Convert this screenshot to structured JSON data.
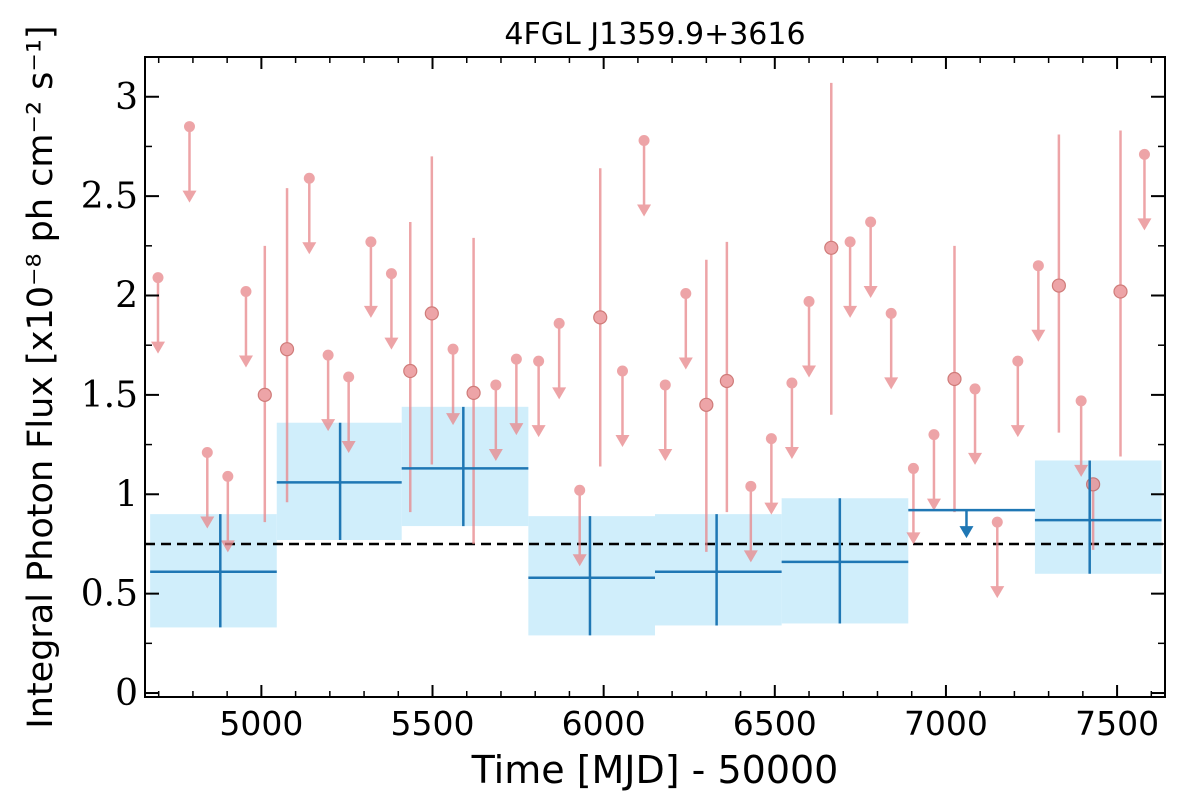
{
  "chart_data": {
    "type": "scatter",
    "title": "4FGL J1359.9+3616",
    "xlabel": "Time [MJD] - 50000",
    "ylabel": "Integral Photon Flux [x10⁻⁸ ph cm⁻² s⁻¹]",
    "xlim": [
      4660,
      7640
    ],
    "ylim": [
      -0.02,
      3.2
    ],
    "xticks": [
      5000,
      5500,
      6000,
      6500,
      7000,
      7500
    ],
    "xtick_labels": [
      "5000",
      "5500",
      "6000",
      "6500",
      "7000",
      "7500"
    ],
    "yticks": [
      0,
      0.5,
      1,
      1.5,
      2,
      2.5,
      3
    ],
    "ytick_labels": [
      "0",
      "0.5",
      "1",
      "1.5",
      "2",
      "2.5",
      "3"
    ],
    "reference_line": {
      "y": 0.75,
      "style": "dashed",
      "color": "#000000"
    },
    "colors": {
      "short_bins": "#e8868a",
      "long_bins": "#1f77b4",
      "band_fill": "#d0eefb"
    },
    "series": [
      {
        "marker": "circle",
        "color": "#e8868a",
        "upper_limits": [
          {
            "x": 4698,
            "y": 2.09
          },
          {
            "x": 4790,
            "y": 2.85
          },
          {
            "x": 4842,
            "y": 1.21
          },
          {
            "x": 4902,
            "y": 1.09
          },
          {
            "x": 4955,
            "y": 2.02
          },
          {
            "x": 5140,
            "y": 2.59
          },
          {
            "x": 5195,
            "y": 1.7
          },
          {
            "x": 5255,
            "y": 1.59
          },
          {
            "x": 5320,
            "y": 2.27
          },
          {
            "x": 5380,
            "y": 2.11
          },
          {
            "x": 5560,
            "y": 1.73
          },
          {
            "x": 5685,
            "y": 1.55
          },
          {
            "x": 5745,
            "y": 1.68
          },
          {
            "x": 5810,
            "y": 1.67
          },
          {
            "x": 5870,
            "y": 1.86
          },
          {
            "x": 5930,
            "y": 1.02
          },
          {
            "x": 6055,
            "y": 1.62
          },
          {
            "x": 6118,
            "y": 2.78
          },
          {
            "x": 6180,
            "y": 1.55
          },
          {
            "x": 6240,
            "y": 2.01
          },
          {
            "x": 6430,
            "y": 1.04
          },
          {
            "x": 6490,
            "y": 1.28
          },
          {
            "x": 6550,
            "y": 1.56
          },
          {
            "x": 6600,
            "y": 1.97
          },
          {
            "x": 6720,
            "y": 2.27
          },
          {
            "x": 6780,
            "y": 2.37
          },
          {
            "x": 6840,
            "y": 1.91
          },
          {
            "x": 6905,
            "y": 1.13
          },
          {
            "x": 6965,
            "y": 1.3
          },
          {
            "x": 7085,
            "y": 1.53
          },
          {
            "x": 7150,
            "y": 0.86
          },
          {
            "x": 7210,
            "y": 1.67
          },
          {
            "x": 7270,
            "y": 2.15
          },
          {
            "x": 7395,
            "y": 1.47
          },
          {
            "x": 7580,
            "y": 2.71
          }
        ],
        "points": [
          {
            "x": 5010,
            "y": 1.5,
            "ylo": 0.86,
            "yhi": 2.25
          },
          {
            "x": 5075,
            "y": 1.73,
            "ylo": 0.96,
            "yhi": 2.54
          },
          {
            "x": 5435,
            "y": 1.62,
            "ylo": 0.91,
            "yhi": 2.37
          },
          {
            "x": 5498,
            "y": 1.91,
            "ylo": 1.15,
            "yhi": 2.7
          },
          {
            "x": 5620,
            "y": 1.51,
            "ylo": 0.75,
            "yhi": 2.29
          },
          {
            "x": 5990,
            "y": 1.89,
            "ylo": 1.14,
            "yhi": 2.64
          },
          {
            "x": 6300,
            "y": 1.45,
            "ylo": 0.71,
            "yhi": 2.18
          },
          {
            "x": 6360,
            "y": 1.57,
            "ylo": 0.91,
            "yhi": 2.27
          },
          {
            "x": 6665,
            "y": 2.24,
            "ylo": 1.4,
            "yhi": 3.07
          },
          {
            "x": 7025,
            "y": 1.58,
            "ylo": 0.91,
            "yhi": 2.25
          },
          {
            "x": 7330,
            "y": 2.05,
            "ylo": 1.31,
            "yhi": 2.81
          },
          {
            "x": 7430,
            "y": 1.05,
            "ylo": 0.72,
            "yhi": 1.05
          },
          {
            "x": 7510,
            "y": 2.02,
            "ylo": 1.19,
            "yhi": 2.83
          }
        ]
      },
      {
        "marker": "cross",
        "color": "#1f77b4",
        "band_color": "#d0eefb",
        "points": [
          {
            "x0": 4675,
            "x1": 5045,
            "x": 4880,
            "y": 0.61,
            "ylo": 0.33,
            "yhi": 0.9
          },
          {
            "x0": 5045,
            "x1": 5410,
            "x": 5230,
            "y": 1.06,
            "ylo": 0.77,
            "yhi": 1.36
          },
          {
            "x0": 5410,
            "x1": 5780,
            "x": 5590,
            "y": 1.13,
            "ylo": 0.84,
            "yhi": 1.44
          },
          {
            "x0": 5780,
            "x1": 6150,
            "x": 5960,
            "y": 0.58,
            "ylo": 0.29,
            "yhi": 0.89
          },
          {
            "x0": 6150,
            "x1": 6520,
            "x": 6330,
            "y": 0.61,
            "ylo": 0.34,
            "yhi": 0.9
          },
          {
            "x0": 6520,
            "x1": 6890,
            "x": 6690,
            "y": 0.66,
            "ylo": 0.35,
            "yhi": 0.98
          },
          {
            "x0": 7260,
            "x1": 7630,
            "x": 7420,
            "y": 0.87,
            "ylo": 0.6,
            "yhi": 1.17
          }
        ],
        "upper_limits": [
          {
            "x0": 6890,
            "x1": 7260,
            "x": 7060,
            "y": 0.92
          }
        ]
      }
    ]
  }
}
